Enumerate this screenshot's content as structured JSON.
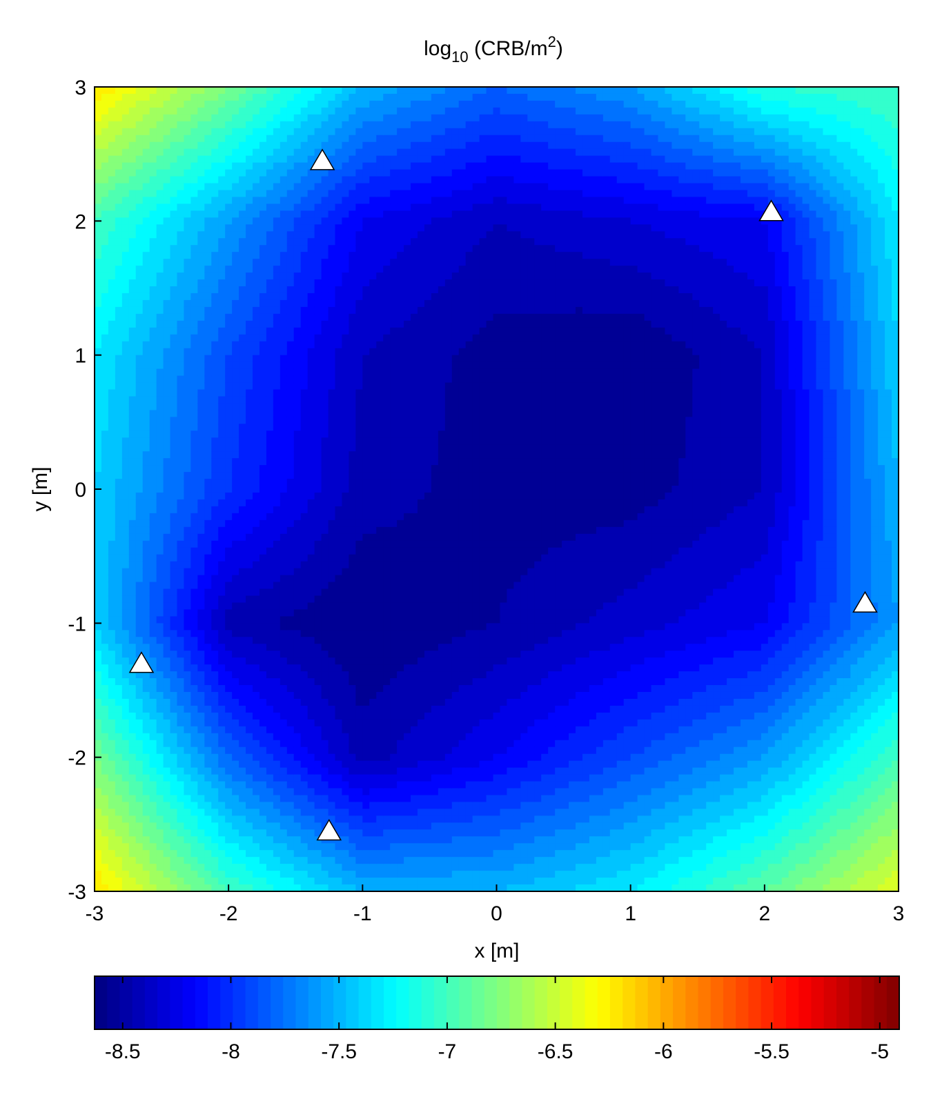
{
  "chart_data": {
    "type": "contour",
    "title": [
      "log",
      "10",
      " (CRB/m",
      "2",
      ")"
    ],
    "x_label": "x [m]",
    "y_label": "y [m]",
    "x": [
      -3,
      -2,
      -1,
      0,
      1,
      2,
      3
    ],
    "y": [
      -3,
      -2,
      -1,
      0,
      1,
      2,
      3
    ],
    "z": [
      [
        -6.2,
        -7.0,
        -7.5,
        -7.5,
        -7.3,
        -6.9,
        -6.4
      ],
      [
        -6.8,
        -7.8,
        -8.45,
        -8.2,
        -7.9,
        -7.6,
        -7.0
      ],
      [
        -7.4,
        -8.45,
        -8.6,
        -8.5,
        -8.35,
        -8.2,
        -7.6
      ],
      [
        -7.4,
        -8.0,
        -8.45,
        -8.55,
        -8.55,
        -8.4,
        -7.5
      ],
      [
        -7.3,
        -7.9,
        -8.4,
        -8.55,
        -8.6,
        -8.4,
        -7.4
      ],
      [
        -7.0,
        -7.6,
        -8.2,
        -8.4,
        -8.3,
        -8.2,
        -7.3
      ],
      [
        -6.2,
        -6.8,
        -7.5,
        -7.8,
        -7.6,
        -7.1,
        -7.0
      ]
    ],
    "level_step": 0.1,
    "colormap": "jet",
    "xlim": [
      -3,
      3
    ],
    "ylim": [
      -3,
      3
    ],
    "xticks": [
      -3,
      -2,
      -1,
      0,
      1,
      2,
      3
    ],
    "yticks": [
      -3,
      -2,
      -1,
      0,
      1,
      2,
      3
    ],
    "clim": [
      -8.63,
      -4.91
    ],
    "cticks": [
      -8.5,
      -8,
      -7.5,
      -7,
      -6.5,
      -6,
      -5.5,
      -5
    ],
    "markers": {
      "x": [
        -1.3,
        2.05,
        2.75,
        -2.65,
        -1.25
      ],
      "y": [
        2.45,
        2.07,
        -0.85,
        -1.3,
        -2.55
      ],
      "color": "#ffffff"
    }
  }
}
